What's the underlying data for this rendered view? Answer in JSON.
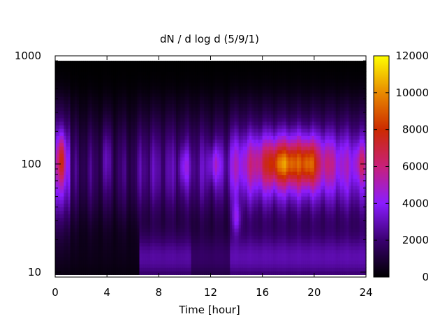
{
  "chart_data": {
    "type": "heatmap",
    "title": "dN / d log d (5/9/1)",
    "xlabel": "Time [hour]",
    "ylabel": "",
    "xlim": [
      0,
      24
    ],
    "ylim": [
      9,
      1000
    ],
    "yscale": "log",
    "data_ylim": [
      9.5,
      900
    ],
    "x_ticks": [
      0,
      4,
      8,
      12,
      16,
      20,
      24
    ],
    "y_ticks": [
      10,
      100,
      1000
    ],
    "colorbar": {
      "min": 0,
      "max": 12000,
      "ticks": [
        0,
        2000,
        4000,
        6000,
        8000,
        10000,
        12000
      ],
      "colormap": "gnuplot-black-purple-red-orange-yellow",
      "stops": [
        "#000000",
        "#3a0070",
        "#8a1cff",
        "#c8207a",
        "#cc2a00",
        "#e88a00",
        "#ffff00"
      ]
    },
    "features": [
      {
        "x_hour": 0.5,
        "size": 110,
        "value": 6500
      },
      {
        "x_hour": 10.0,
        "size": 100,
        "value": 4700
      },
      {
        "x_hour": 12.3,
        "size": 100,
        "value": 5000
      },
      {
        "x_hour": 14.0,
        "size": 30,
        "value": 6000
      },
      {
        "x_hour": 17.5,
        "size": 100,
        "value": 9500
      },
      {
        "x_hour": 19.5,
        "size": 100,
        "value": 9800
      },
      {
        "x_hour": 23.7,
        "size": 100,
        "value": 7000
      }
    ]
  }
}
